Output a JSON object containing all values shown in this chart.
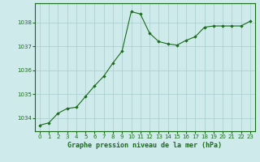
{
  "x": [
    0,
    1,
    2,
    3,
    4,
    5,
    6,
    7,
    8,
    9,
    10,
    11,
    12,
    13,
    14,
    15,
    16,
    17,
    18,
    19,
    20,
    21,
    22,
    23
  ],
  "y": [
    1033.7,
    1033.8,
    1034.2,
    1034.4,
    1034.45,
    1034.9,
    1035.35,
    1035.75,
    1036.3,
    1036.8,
    1038.45,
    1038.35,
    1037.55,
    1037.2,
    1037.1,
    1037.05,
    1037.25,
    1037.4,
    1037.8,
    1037.85,
    1037.85,
    1037.85,
    1037.85,
    1038.05
  ],
  "line_color": "#1a6b1a",
  "marker": "D",
  "marker_size": 1.8,
  "bg_color": "#ceeaea",
  "grid_color": "#aacccc",
  "axis_color": "#1a6b1a",
  "tick_color": "#1a6b1a",
  "xlabel": "Graphe pression niveau de la mer (hPa)",
  "xlabel_color": "#1a6b1a",
  "xlabel_fontsize": 6.0,
  "yticks": [
    1034,
    1035,
    1036,
    1037,
    1038
  ],
  "ylim": [
    1033.45,
    1038.8
  ],
  "xlim": [
    -0.5,
    23.5
  ],
  "xtick_labels": [
    "0",
    "1",
    "2",
    "3",
    "4",
    "5",
    "6",
    "7",
    "8",
    "9",
    "10",
    "11",
    "12",
    "13",
    "14",
    "15",
    "16",
    "17",
    "18",
    "19",
    "20",
    "21",
    "22",
    "23"
  ],
  "tick_fontsize": 5.0,
  "line_width": 0.8
}
